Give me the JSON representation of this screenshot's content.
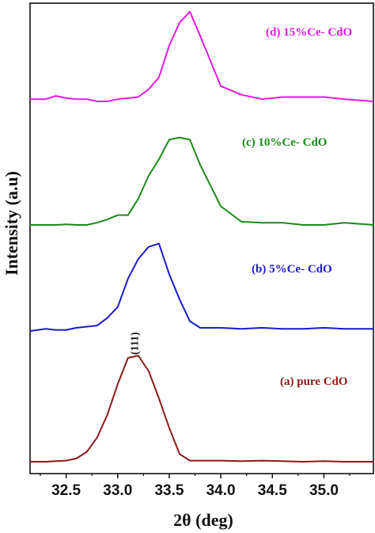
{
  "chart_data": {
    "type": "line",
    "xlabel": "2θ (deg)",
    "ylabel": "Intensity (a.u)",
    "xlim": [
      32.15,
      35.48
    ],
    "y_ticks_shown": false,
    "grid": false,
    "legend": "inline labels beside each curve",
    "x_ticks": [
      "32.5",
      "33.0",
      "33.5",
      "34.0",
      "34.5",
      "35.0"
    ],
    "x_tick_values": [
      32.5,
      33.0,
      33.5,
      34.0,
      34.5,
      35.0
    ],
    "annotations": [
      {
        "text": "(111)",
        "x": 33.15
      }
    ],
    "series": [
      {
        "name": "(a) pure CdO",
        "color": "#8b1a1a",
        "x": [
          32.15,
          32.3,
          32.4,
          32.5,
          32.6,
          32.7,
          32.8,
          32.9,
          33.0,
          33.1,
          33.2,
          33.3,
          33.4,
          33.5,
          33.6,
          33.7,
          33.8,
          34.0,
          34.2,
          34.4,
          34.6,
          34.8,
          35.0,
          35.2,
          35.48
        ],
        "y": [
          0.0,
          0.0,
          0.005,
          0.01,
          0.03,
          0.09,
          0.22,
          0.43,
          0.71,
          0.95,
          0.97,
          0.83,
          0.58,
          0.31,
          0.07,
          0.01,
          0.01,
          0.01,
          0.005,
          0.01,
          0.005,
          0.0,
          0.005,
          0.0,
          0.0
        ]
      },
      {
        "name": "(b) 5%Ce- CdO",
        "color": "#1a1acc",
        "x": [
          32.15,
          32.3,
          32.4,
          32.5,
          32.6,
          32.7,
          32.8,
          32.9,
          33.0,
          33.1,
          33.2,
          33.3,
          33.4,
          33.5,
          33.6,
          33.7,
          33.8,
          34.0,
          34.2,
          34.4,
          34.6,
          34.8,
          35.0,
          35.2,
          35.48
        ],
        "y": [
          0.0,
          0.02,
          0.01,
          0.01,
          0.03,
          0.04,
          0.05,
          0.12,
          0.22,
          0.48,
          0.66,
          0.77,
          0.8,
          0.52,
          0.29,
          0.09,
          0.03,
          0.03,
          0.02,
          0.03,
          0.02,
          0.02,
          0.03,
          0.02,
          0.02
        ]
      },
      {
        "name": "(c) 10%Ce- CdO",
        "color": "#1a8a1a",
        "x": [
          32.15,
          32.3,
          32.4,
          32.5,
          32.6,
          32.7,
          32.8,
          32.9,
          33.0,
          33.1,
          33.2,
          33.3,
          33.4,
          33.5,
          33.6,
          33.7,
          33.8,
          34.0,
          34.2,
          34.4,
          34.6,
          34.8,
          35.0,
          35.2,
          35.48
        ],
        "y": [
          0.0,
          0.0,
          0.0,
          0.005,
          0.0,
          0.0,
          0.02,
          0.05,
          0.09,
          0.09,
          0.24,
          0.45,
          0.6,
          0.78,
          0.8,
          0.78,
          0.55,
          0.17,
          0.03,
          0.02,
          0.02,
          0.0,
          0.0,
          0.02,
          0.0
        ]
      },
      {
        "name": "(d) 15%Ce- CdO",
        "color": "#e31ae3",
        "x": [
          32.15,
          32.3,
          32.4,
          32.5,
          32.6,
          32.7,
          32.8,
          32.9,
          33.0,
          33.1,
          33.2,
          33.3,
          33.4,
          33.5,
          33.6,
          33.7,
          33.8,
          34.0,
          34.2,
          34.4,
          34.6,
          34.8,
          35.0,
          35.2,
          35.48
        ],
        "y": [
          0.02,
          0.02,
          0.05,
          0.03,
          0.02,
          0.02,
          0.0,
          0.0,
          0.02,
          0.03,
          0.04,
          0.11,
          0.22,
          0.51,
          0.72,
          0.82,
          0.6,
          0.14,
          0.06,
          0.02,
          0.04,
          0.04,
          0.04,
          0.02,
          0.0
        ]
      }
    ]
  }
}
